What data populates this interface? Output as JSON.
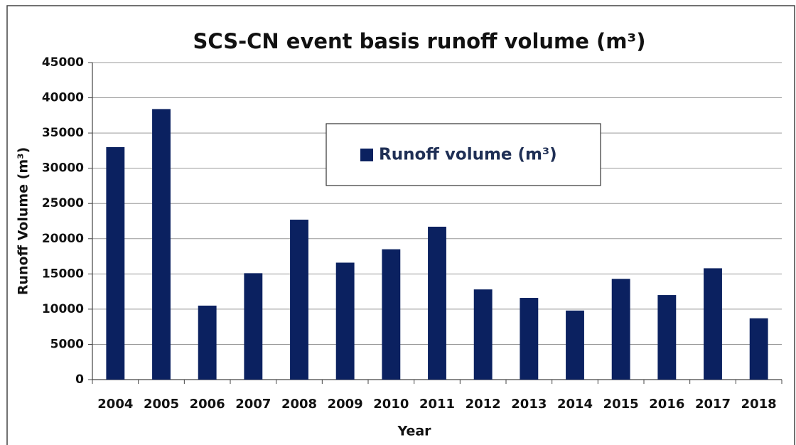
{
  "chart_data": {
    "type": "bar",
    "title": "SCS-CN event basis runoff volume (m³)",
    "x_label": "Year",
    "y_label": "Runoff Volume (m³)",
    "categories": [
      "2004",
      "2005",
      "2006",
      "2007",
      "2008",
      "2009",
      "2010",
      "2011",
      "2012",
      "2013",
      "2014",
      "2015",
      "2016",
      "2017",
      "2018"
    ],
    "series": [
      {
        "name": "Runoff volume (m³)",
        "color": "#0b2160",
        "values": [
          33000,
          38400,
          10500,
          15100,
          22700,
          16600,
          18500,
          21700,
          12800,
          11600,
          9800,
          14300,
          12000,
          15800,
          8700
        ]
      }
    ],
    "ylim": [
      0,
      45000
    ],
    "yticks": [
      0,
      5000,
      10000,
      15000,
      20000,
      25000,
      30000,
      35000,
      40000,
      45000
    ],
    "grid": true,
    "legend": "top"
  }
}
